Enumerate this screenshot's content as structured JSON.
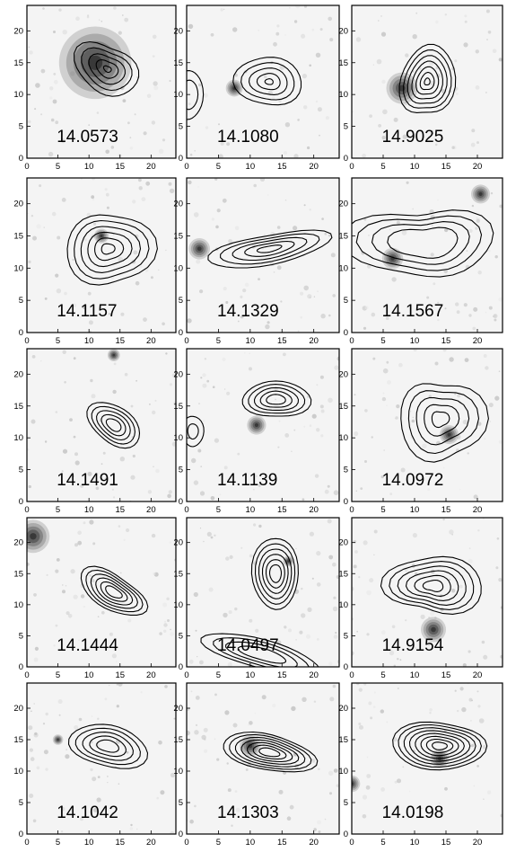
{
  "figure": {
    "rows": 5,
    "cols": 3,
    "axis_ticks": [
      "0",
      "5",
      "10",
      "15",
      "20"
    ],
    "axis_range": [
      0,
      24
    ]
  },
  "panels": [
    {
      "label": "14.0573"
    },
    {
      "label": "14.1080"
    },
    {
      "label": "14.9025"
    },
    {
      "label": "14.1157"
    },
    {
      "label": "14.1329"
    },
    {
      "label": "14.1567"
    },
    {
      "label": "14.1491"
    },
    {
      "label": "14.1139"
    },
    {
      "label": "14.0972"
    },
    {
      "label": "14.1444"
    },
    {
      "label": "14.0497"
    },
    {
      "label": "14.9154"
    },
    {
      "label": "14.1042"
    },
    {
      "label": "14.1303"
    },
    {
      "label": "14.0198"
    }
  ],
  "colors": {
    "contour": "#000000",
    "background": "#f4f4f4",
    "source": "#111111"
  }
}
